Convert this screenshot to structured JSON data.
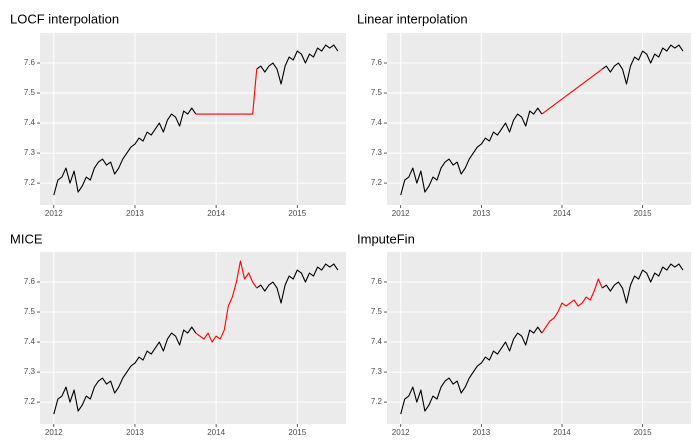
{
  "chart_data": [
    {
      "type": "line",
      "title": "LOCF interpolation",
      "x": [
        2012.0,
        2012.05,
        2012.1,
        2012.15,
        2012.2,
        2012.25,
        2012.3,
        2012.35,
        2012.4,
        2012.45,
        2012.5,
        2012.55,
        2012.6,
        2012.65,
        2012.7,
        2012.75,
        2012.8,
        2012.85,
        2012.9,
        2012.95,
        2013.0,
        2013.05,
        2013.1,
        2013.15,
        2013.2,
        2013.25,
        2013.3,
        2013.35,
        2013.4,
        2013.45,
        2013.5,
        2013.55,
        2013.6,
        2013.65,
        2013.7,
        2013.75,
        2013.8,
        2013.85,
        2013.9,
        2013.95,
        2014.0,
        2014.05,
        2014.1,
        2014.15,
        2014.2,
        2014.25,
        2014.3,
        2014.35,
        2014.4,
        2014.45,
        2014.5,
        2014.55,
        2014.6,
        2014.65,
        2014.7,
        2014.75,
        2014.8,
        2014.85,
        2014.9,
        2014.95,
        2015.0,
        2015.05,
        2015.1,
        2015.15,
        2015.2,
        2015.25,
        2015.3,
        2015.35,
        2015.4,
        2015.45,
        2015.5
      ],
      "series": [
        {
          "color": "#000000",
          "values": [
            7.16,
            7.21,
            7.22,
            7.25,
            7.2,
            7.24,
            7.17,
            7.19,
            7.22,
            7.21,
            7.25,
            7.27,
            7.28,
            7.26,
            7.27,
            7.23,
            7.25,
            7.28,
            7.3,
            7.32,
            7.33,
            7.35,
            7.34,
            7.37,
            7.36,
            7.38,
            7.4,
            7.37,
            7.41,
            7.43,
            7.42,
            7.39,
            7.44,
            7.43,
            7.45,
            7.43,
            null,
            null,
            null,
            null,
            null,
            null,
            null,
            null,
            null,
            null,
            null,
            null,
            null,
            null,
            7.58,
            7.59,
            7.57,
            7.59,
            7.6,
            7.58,
            7.53,
            7.59,
            7.62,
            7.61,
            7.64,
            7.63,
            7.6,
            7.63,
            7.62,
            7.65,
            7.64,
            7.66,
            7.65,
            7.66,
            7.64
          ]
        },
        {
          "color": "#ff0000",
          "values": [
            null,
            null,
            null,
            null,
            null,
            null,
            null,
            null,
            null,
            null,
            null,
            null,
            null,
            null,
            null,
            null,
            null,
            null,
            null,
            null,
            null,
            null,
            null,
            null,
            null,
            null,
            null,
            null,
            null,
            null,
            null,
            null,
            null,
            null,
            null,
            7.43,
            7.43,
            7.43,
            7.43,
            7.43,
            7.43,
            7.43,
            7.43,
            7.43,
            7.43,
            7.43,
            7.43,
            7.43,
            7.43,
            7.43,
            7.58,
            null,
            null,
            null,
            null,
            null,
            null,
            null,
            null,
            null,
            null,
            null,
            null,
            null,
            null,
            null,
            null,
            null,
            null,
            null,
            null
          ]
        }
      ],
      "xlim": [
        2011.83,
        2015.6
      ],
      "ylim": [
        7.127,
        7.7
      ],
      "xticks": [
        2012,
        2013,
        2014,
        2015
      ],
      "yticks": [
        7.2,
        7.3,
        7.4,
        7.5,
        7.6
      ],
      "grid": true
    },
    {
      "type": "line",
      "title": "Linear interpolation",
      "x": [
        2012.0,
        2012.05,
        2012.1,
        2012.15,
        2012.2,
        2012.25,
        2012.3,
        2012.35,
        2012.4,
        2012.45,
        2012.5,
        2012.55,
        2012.6,
        2012.65,
        2012.7,
        2012.75,
        2012.8,
        2012.85,
        2012.9,
        2012.95,
        2013.0,
        2013.05,
        2013.1,
        2013.15,
        2013.2,
        2013.25,
        2013.3,
        2013.35,
        2013.4,
        2013.45,
        2013.5,
        2013.55,
        2013.6,
        2013.65,
        2013.7,
        2013.75,
        2013.8,
        2013.85,
        2013.9,
        2013.95,
        2014.0,
        2014.05,
        2014.1,
        2014.15,
        2014.2,
        2014.25,
        2014.3,
        2014.35,
        2014.4,
        2014.45,
        2014.5,
        2014.55,
        2014.6,
        2014.65,
        2014.7,
        2014.75,
        2014.8,
        2014.85,
        2014.9,
        2014.95,
        2015.0,
        2015.05,
        2015.1,
        2015.15,
        2015.2,
        2015.25,
        2015.3,
        2015.35,
        2015.4,
        2015.45,
        2015.5
      ],
      "series": [
        {
          "color": "#000000",
          "values": [
            7.16,
            7.21,
            7.22,
            7.25,
            7.2,
            7.24,
            7.17,
            7.19,
            7.22,
            7.21,
            7.25,
            7.27,
            7.28,
            7.26,
            7.27,
            7.23,
            7.25,
            7.28,
            7.3,
            7.32,
            7.33,
            7.35,
            7.34,
            7.37,
            7.36,
            7.38,
            7.4,
            7.37,
            7.41,
            7.43,
            7.42,
            7.39,
            7.44,
            7.43,
            7.45,
            7.43,
            null,
            null,
            null,
            null,
            null,
            null,
            null,
            null,
            null,
            null,
            null,
            null,
            null,
            null,
            7.58,
            7.59,
            7.57,
            7.59,
            7.6,
            7.58,
            7.53,
            7.59,
            7.62,
            7.61,
            7.64,
            7.63,
            7.6,
            7.63,
            7.62,
            7.65,
            7.64,
            7.66,
            7.65,
            7.66,
            7.64
          ]
        },
        {
          "color": "#ff0000",
          "values": [
            null,
            null,
            null,
            null,
            null,
            null,
            null,
            null,
            null,
            null,
            null,
            null,
            null,
            null,
            null,
            null,
            null,
            null,
            null,
            null,
            null,
            null,
            null,
            null,
            null,
            null,
            null,
            null,
            null,
            null,
            null,
            null,
            null,
            null,
            null,
            7.43,
            7.44,
            7.45,
            7.46,
            7.47,
            7.48,
            7.49,
            7.5,
            7.51,
            7.52,
            7.53,
            7.54,
            7.55,
            7.56,
            7.57,
            7.58,
            null,
            null,
            null,
            null,
            null,
            null,
            null,
            null,
            null,
            null,
            null,
            null,
            null,
            null,
            null,
            null,
            null,
            null,
            null,
            null
          ]
        }
      ],
      "xlim": [
        2011.83,
        2015.6
      ],
      "ylim": [
        7.127,
        7.7
      ],
      "xticks": [
        2012,
        2013,
        2014,
        2015
      ],
      "yticks": [
        7.2,
        7.3,
        7.4,
        7.5,
        7.6
      ],
      "grid": true
    },
    {
      "type": "line",
      "title": "MICE",
      "x": [
        2012.0,
        2012.05,
        2012.1,
        2012.15,
        2012.2,
        2012.25,
        2012.3,
        2012.35,
        2012.4,
        2012.45,
        2012.5,
        2012.55,
        2012.6,
        2012.65,
        2012.7,
        2012.75,
        2012.8,
        2012.85,
        2012.9,
        2012.95,
        2013.0,
        2013.05,
        2013.1,
        2013.15,
        2013.2,
        2013.25,
        2013.3,
        2013.35,
        2013.4,
        2013.45,
        2013.5,
        2013.55,
        2013.6,
        2013.65,
        2013.7,
        2013.75,
        2013.8,
        2013.85,
        2013.9,
        2013.95,
        2014.0,
        2014.05,
        2014.1,
        2014.15,
        2014.2,
        2014.25,
        2014.3,
        2014.35,
        2014.4,
        2014.45,
        2014.5,
        2014.55,
        2014.6,
        2014.65,
        2014.7,
        2014.75,
        2014.8,
        2014.85,
        2014.9,
        2014.95,
        2015.0,
        2015.05,
        2015.1,
        2015.15,
        2015.2,
        2015.25,
        2015.3,
        2015.35,
        2015.4,
        2015.45,
        2015.5
      ],
      "series": [
        {
          "color": "#000000",
          "values": [
            7.16,
            7.21,
            7.22,
            7.25,
            7.2,
            7.24,
            7.17,
            7.19,
            7.22,
            7.21,
            7.25,
            7.27,
            7.28,
            7.26,
            7.27,
            7.23,
            7.25,
            7.28,
            7.3,
            7.32,
            7.33,
            7.35,
            7.34,
            7.37,
            7.36,
            7.38,
            7.4,
            7.37,
            7.41,
            7.43,
            7.42,
            7.39,
            7.44,
            7.43,
            7.45,
            7.43,
            null,
            null,
            null,
            null,
            null,
            null,
            null,
            null,
            null,
            null,
            null,
            null,
            null,
            null,
            7.58,
            7.59,
            7.57,
            7.59,
            7.6,
            7.58,
            7.53,
            7.59,
            7.62,
            7.61,
            7.64,
            7.63,
            7.6,
            7.63,
            7.62,
            7.65,
            7.64,
            7.66,
            7.65,
            7.66,
            7.64
          ]
        },
        {
          "color": "#ff0000",
          "values": [
            null,
            null,
            null,
            null,
            null,
            null,
            null,
            null,
            null,
            null,
            null,
            null,
            null,
            null,
            null,
            null,
            null,
            null,
            null,
            null,
            null,
            null,
            null,
            null,
            null,
            null,
            null,
            null,
            null,
            null,
            null,
            null,
            null,
            null,
            null,
            7.43,
            7.42,
            7.41,
            7.43,
            7.4,
            7.42,
            7.41,
            7.44,
            7.52,
            7.55,
            7.6,
            7.67,
            7.61,
            7.63,
            7.6,
            7.58,
            null,
            null,
            null,
            null,
            null,
            null,
            null,
            null,
            null,
            null,
            null,
            null,
            null,
            null,
            null,
            null,
            null,
            null,
            null,
            null
          ]
        }
      ],
      "xlim": [
        2011.83,
        2015.6
      ],
      "ylim": [
        7.127,
        7.7
      ],
      "xticks": [
        2012,
        2013,
        2014,
        2015
      ],
      "yticks": [
        7.2,
        7.3,
        7.4,
        7.5,
        7.6
      ],
      "grid": true
    },
    {
      "type": "line",
      "title": "ImputeFin",
      "x": [
        2012.0,
        2012.05,
        2012.1,
        2012.15,
        2012.2,
        2012.25,
        2012.3,
        2012.35,
        2012.4,
        2012.45,
        2012.5,
        2012.55,
        2012.6,
        2012.65,
        2012.7,
        2012.75,
        2012.8,
        2012.85,
        2012.9,
        2012.95,
        2013.0,
        2013.05,
        2013.1,
        2013.15,
        2013.2,
        2013.25,
        2013.3,
        2013.35,
        2013.4,
        2013.45,
        2013.5,
        2013.55,
        2013.6,
        2013.65,
        2013.7,
        2013.75,
        2013.8,
        2013.85,
        2013.9,
        2013.95,
        2014.0,
        2014.05,
        2014.1,
        2014.15,
        2014.2,
        2014.25,
        2014.3,
        2014.35,
        2014.4,
        2014.45,
        2014.5,
        2014.55,
        2014.6,
        2014.65,
        2014.7,
        2014.75,
        2014.8,
        2014.85,
        2014.9,
        2014.95,
        2015.0,
        2015.05,
        2015.1,
        2015.15,
        2015.2,
        2015.25,
        2015.3,
        2015.35,
        2015.4,
        2015.45,
        2015.5
      ],
      "series": [
        {
          "color": "#000000",
          "values": [
            7.16,
            7.21,
            7.22,
            7.25,
            7.2,
            7.24,
            7.17,
            7.19,
            7.22,
            7.21,
            7.25,
            7.27,
            7.28,
            7.26,
            7.27,
            7.23,
            7.25,
            7.28,
            7.3,
            7.32,
            7.33,
            7.35,
            7.34,
            7.37,
            7.36,
            7.38,
            7.4,
            7.37,
            7.41,
            7.43,
            7.42,
            7.39,
            7.44,
            7.43,
            7.45,
            7.43,
            null,
            null,
            null,
            null,
            null,
            null,
            null,
            null,
            null,
            null,
            null,
            null,
            null,
            null,
            7.58,
            7.59,
            7.57,
            7.59,
            7.6,
            7.58,
            7.53,
            7.59,
            7.62,
            7.61,
            7.64,
            7.63,
            7.6,
            7.63,
            7.62,
            7.65,
            7.64,
            7.66,
            7.65,
            7.66,
            7.64
          ]
        },
        {
          "color": "#ff0000",
          "values": [
            null,
            null,
            null,
            null,
            null,
            null,
            null,
            null,
            null,
            null,
            null,
            null,
            null,
            null,
            null,
            null,
            null,
            null,
            null,
            null,
            null,
            null,
            null,
            null,
            null,
            null,
            null,
            null,
            null,
            null,
            null,
            null,
            null,
            null,
            null,
            7.43,
            7.45,
            7.47,
            7.48,
            7.5,
            7.53,
            7.52,
            7.53,
            7.54,
            7.52,
            7.53,
            7.55,
            7.54,
            7.57,
            7.61,
            7.58,
            null,
            null,
            null,
            null,
            null,
            null,
            null,
            null,
            null,
            null,
            null,
            null,
            null,
            null,
            null,
            null,
            null,
            null,
            null,
            null
          ]
        }
      ],
      "xlim": [
        2011.83,
        2015.6
      ],
      "ylim": [
        7.127,
        7.7
      ],
      "xticks": [
        2012,
        2013,
        2014,
        2015
      ],
      "yticks": [
        7.2,
        7.3,
        7.4,
        7.5,
        7.6
      ],
      "grid": true
    }
  ]
}
